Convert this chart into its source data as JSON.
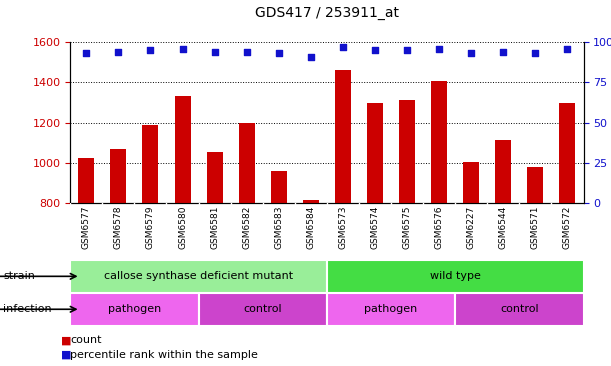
{
  "title": "GDS417 / 253911_at",
  "samples": [
    "GSM6577",
    "GSM6578",
    "GSM6579",
    "GSM6580",
    "GSM6581",
    "GSM6582",
    "GSM6583",
    "GSM6584",
    "GSM6573",
    "GSM6574",
    "GSM6575",
    "GSM6576",
    "GSM6227",
    "GSM6544",
    "GSM6571",
    "GSM6572"
  ],
  "counts": [
    1025,
    1070,
    1190,
    1330,
    1055,
    1200,
    960,
    818,
    1460,
    1295,
    1310,
    1405,
    1005,
    1115,
    980,
    1295
  ],
  "percentiles": [
    93,
    94,
    95,
    96,
    94,
    94,
    93,
    91,
    97,
    95,
    95,
    96,
    93,
    94,
    93,
    96
  ],
  "ylim_left": [
    800,
    1600
  ],
  "ylim_right": [
    0,
    100
  ],
  "yticks_left": [
    800,
    1000,
    1200,
    1400,
    1600
  ],
  "yticks_right": [
    0,
    25,
    50,
    75,
    100
  ],
  "grid_values": [
    1000,
    1200,
    1400,
    1600
  ],
  "bar_color": "#cc0000",
  "dot_color": "#1111cc",
  "strain_groups": [
    {
      "label": "callose synthase deficient mutant",
      "start": 0,
      "end": 8,
      "color": "#99ee99"
    },
    {
      "label": "wild type",
      "start": 8,
      "end": 16,
      "color": "#44dd44"
    }
  ],
  "infection_groups": [
    {
      "label": "pathogen",
      "start": 0,
      "end": 4,
      "color": "#ee66ee"
    },
    {
      "label": "control",
      "start": 4,
      "end": 8,
      "color": "#cc44cc"
    },
    {
      "label": "pathogen",
      "start": 8,
      "end": 12,
      "color": "#ee66ee"
    },
    {
      "label": "control",
      "start": 12,
      "end": 16,
      "color": "#cc44cc"
    }
  ],
  "legend_items": [
    {
      "label": "count",
      "color": "#cc0000",
      "marker_color": "#cc0000"
    },
    {
      "label": "percentile rank within the sample",
      "color": "#1111cc",
      "marker_color": "#1111cc"
    }
  ],
  "bar_width": 0.5,
  "background_color": "#ffffff",
  "plot_bg": "#ffffff",
  "tick_label_color_left": "#cc0000",
  "tick_label_color_right": "#1111cc",
  "xticklabel_bg": "#dddddd"
}
